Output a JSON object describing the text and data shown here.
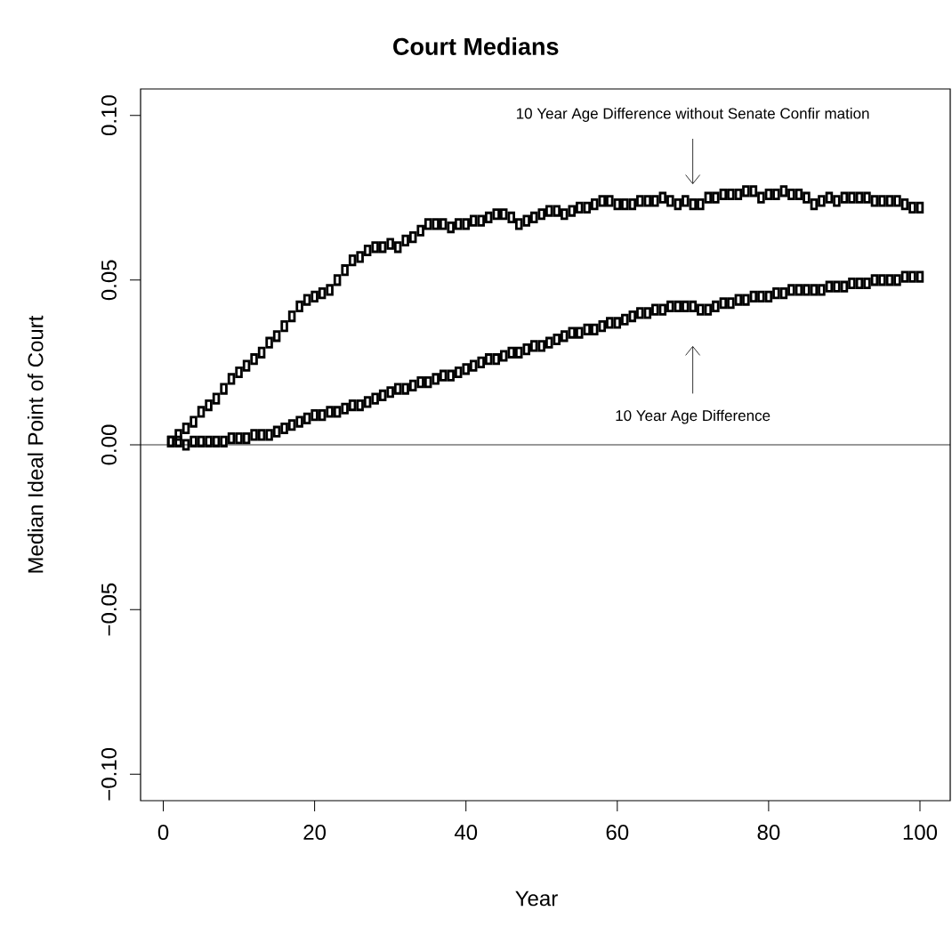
{
  "chart_data": {
    "type": "scatter",
    "title": "Court Medians",
    "xlabel": "Year",
    "ylabel": "Median Ideal Point of Court",
    "x": [
      1,
      2,
      3,
      4,
      5,
      6,
      7,
      8,
      9,
      10,
      11,
      12,
      13,
      14,
      15,
      16,
      17,
      18,
      19,
      20,
      21,
      22,
      23,
      24,
      25,
      26,
      27,
      28,
      29,
      30,
      31,
      32,
      33,
      34,
      35,
      36,
      37,
      38,
      39,
      40,
      41,
      42,
      43,
      44,
      45,
      46,
      47,
      48,
      49,
      50,
      51,
      52,
      53,
      54,
      55,
      56,
      57,
      58,
      59,
      60,
      61,
      62,
      63,
      64,
      65,
      66,
      67,
      68,
      69,
      70,
      71,
      72,
      73,
      74,
      75,
      76,
      77,
      78,
      79,
      80,
      81,
      82,
      83,
      84,
      85,
      86,
      87,
      88,
      89,
      90,
      91,
      92,
      93,
      94,
      95,
      96,
      97,
      98,
      99,
      100
    ],
    "series": [
      {
        "color": "#000000",
        "values": [
          0.001,
          0.003,
          0.005,
          0.007,
          0.01,
          0.012,
          0.014,
          0.017,
          0.02,
          0.022,
          0.024,
          0.026,
          0.028,
          0.031,
          0.033,
          0.036,
          0.039,
          0.042,
          0.044,
          0.045,
          0.046,
          0.047,
          0.05,
          0.053,
          0.056,
          0.057,
          0.059,
          0.06,
          0.06,
          0.061,
          0.06,
          0.062,
          0.063,
          0.065,
          0.067,
          0.067,
          0.067,
          0.066,
          0.067,
          0.067,
          0.068,
          0.068,
          0.069,
          0.07,
          0.07,
          0.069,
          0.067,
          0.068,
          0.069,
          0.07,
          0.071,
          0.071,
          0.07,
          0.071,
          0.072,
          0.072,
          0.073,
          0.074,
          0.074,
          0.073,
          0.073,
          0.073,
          0.074,
          0.074,
          0.074,
          0.075,
          0.074,
          0.073,
          0.074,
          0.073,
          0.073,
          0.075,
          0.075,
          0.076,
          0.076,
          0.076,
          0.077,
          0.077,
          0.075,
          0.076,
          0.076,
          0.077,
          0.076,
          0.076,
          0.075,
          0.073,
          0.074,
          0.075,
          0.074,
          0.075,
          0.075,
          0.075,
          0.075,
          0.074,
          0.074,
          0.074,
          0.074,
          0.073,
          0.072,
          0.072
        ]
      },
      {
        "color": "#000000",
        "values": [
          0.001,
          0.001,
          0.0,
          0.001,
          0.001,
          0.001,
          0.001,
          0.001,
          0.002,
          0.002,
          0.002,
          0.003,
          0.003,
          0.003,
          0.004,
          0.005,
          0.006,
          0.007,
          0.008,
          0.009,
          0.009,
          0.01,
          0.01,
          0.011,
          0.012,
          0.012,
          0.013,
          0.014,
          0.015,
          0.016,
          0.017,
          0.017,
          0.018,
          0.019,
          0.019,
          0.02,
          0.021,
          0.021,
          0.022,
          0.023,
          0.024,
          0.025,
          0.026,
          0.026,
          0.027,
          0.028,
          0.028,
          0.029,
          0.03,
          0.03,
          0.031,
          0.032,
          0.033,
          0.034,
          0.034,
          0.035,
          0.035,
          0.036,
          0.037,
          0.037,
          0.038,
          0.039,
          0.04,
          0.04,
          0.041,
          0.041,
          0.042,
          0.042,
          0.042,
          0.042,
          0.041,
          0.041,
          0.042,
          0.043,
          0.043,
          0.044,
          0.044,
          0.045,
          0.045,
          0.045,
          0.046,
          0.046,
          0.047,
          0.047,
          0.047,
          0.047,
          0.047,
          0.048,
          0.048,
          0.048,
          0.049,
          0.049,
          0.049,
          0.05,
          0.05,
          0.05,
          0.05,
          0.051,
          0.051,
          0.051
        ]
      }
    ],
    "marker": "square",
    "xlim": [
      -3,
      104
    ],
    "ylim": [
      -0.108,
      0.108
    ],
    "xticks": [
      0,
      20,
      40,
      60,
      80,
      100
    ],
    "yticks": [
      {
        "value": -0.1,
        "label": "−0.10"
      },
      {
        "value": -0.05,
        "label": "−0.05"
      },
      {
        "value": 0,
        "label": "0.00"
      },
      {
        "value": 0.05,
        "label": "0.05"
      },
      {
        "value": 0.1,
        "label": "0.10"
      }
    ],
    "ref_lines": [
      {
        "axis": "y",
        "value": 0
      }
    ],
    "annotations": [
      "10 Year Age Difference without Senate Confir mation",
      "10 Year Age Difference"
    ]
  }
}
